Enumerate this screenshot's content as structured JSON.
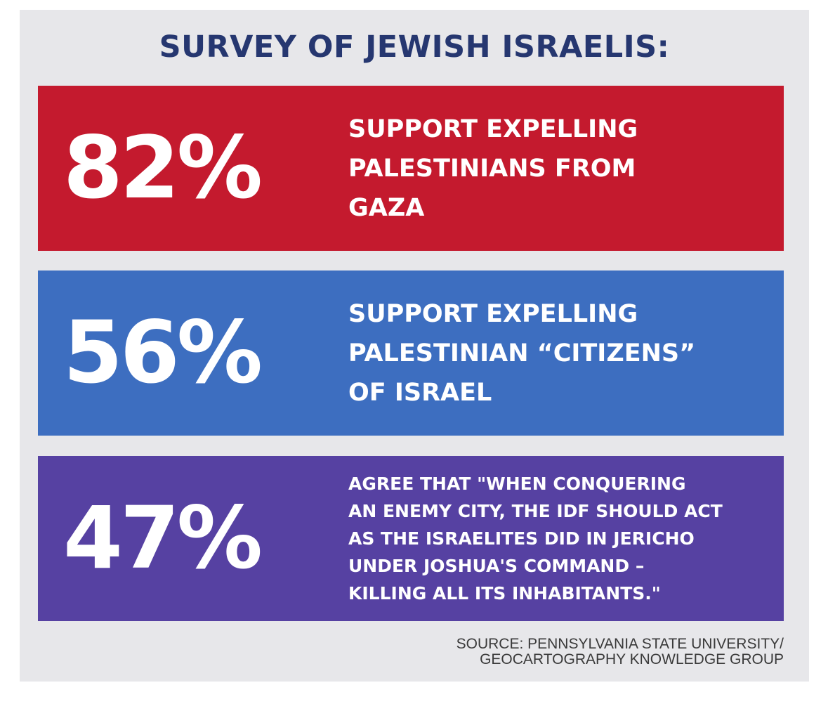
{
  "title": "SURVEY OF JEWISH ISRAELIS:",
  "colors": {
    "background": "#e7e7ea",
    "title": "#263770",
    "stat1": "#c41a2e",
    "stat2": "#3d6ec0",
    "stat3": "#5641a2"
  },
  "stats": [
    {
      "percent": "82%",
      "text": "SUPPORT EXPELLING\nPALESTINIANS FROM\nGAZA"
    },
    {
      "percent": "56%",
      "text": "SUPPORT EXPELLING\nPALESTINIAN “CITIZENS”\nOF ISRAEL"
    },
    {
      "percent": "47%",
      "text": "AGREE THAT \"WHEN CONQUERING\nAN ENEMY CITY, THE IDF SHOULD ACT\nAS THE ISRAELITES DID IN JERICHO\nUNDER JOSHUA'S COMMAND –\nKILLING ALL ITS INHABITANTS.\""
    }
  ],
  "source": "SOURCE: PENNSYLVANIA STATE UNIVERSITY/\nGEOCARTOGRAPHY KNOWLEDGE GROUP"
}
